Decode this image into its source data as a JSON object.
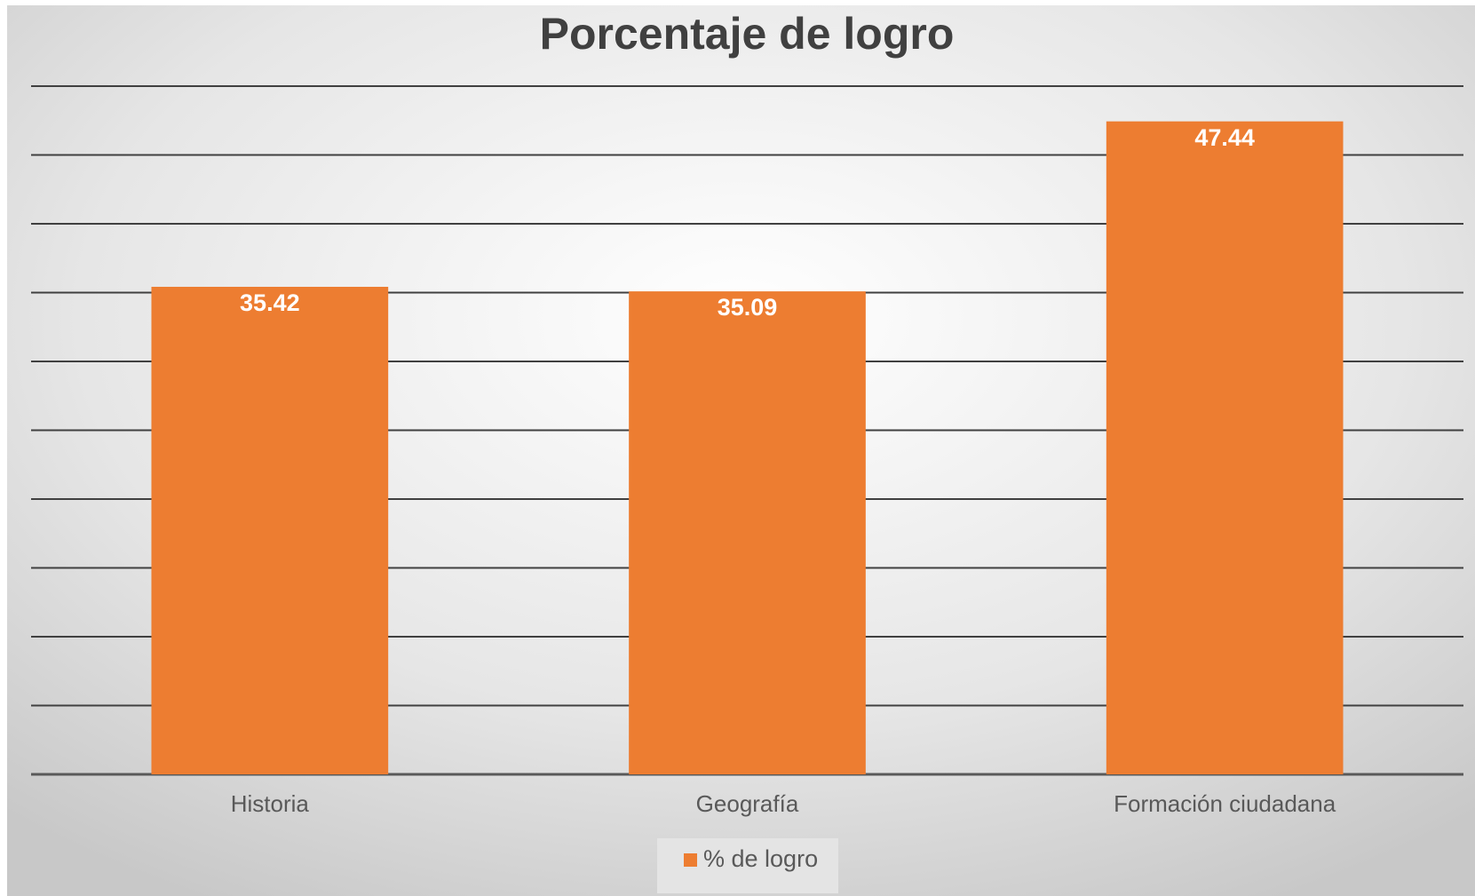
{
  "chart_data": {
    "type": "bar",
    "title": "Porcentaje de logro",
    "categories": [
      "Historia",
      "Geografía",
      "Formación ciudadana"
    ],
    "series": [
      {
        "name": "% de logro",
        "color": "#ed7d31",
        "values": [
          35.42,
          35.09,
          47.44
        ]
      }
    ],
    "ylim": [
      0,
      50
    ],
    "yticks": [
      0,
      5,
      10,
      15,
      20,
      25,
      30,
      35,
      40,
      45,
      50
    ],
    "grid": true
  }
}
